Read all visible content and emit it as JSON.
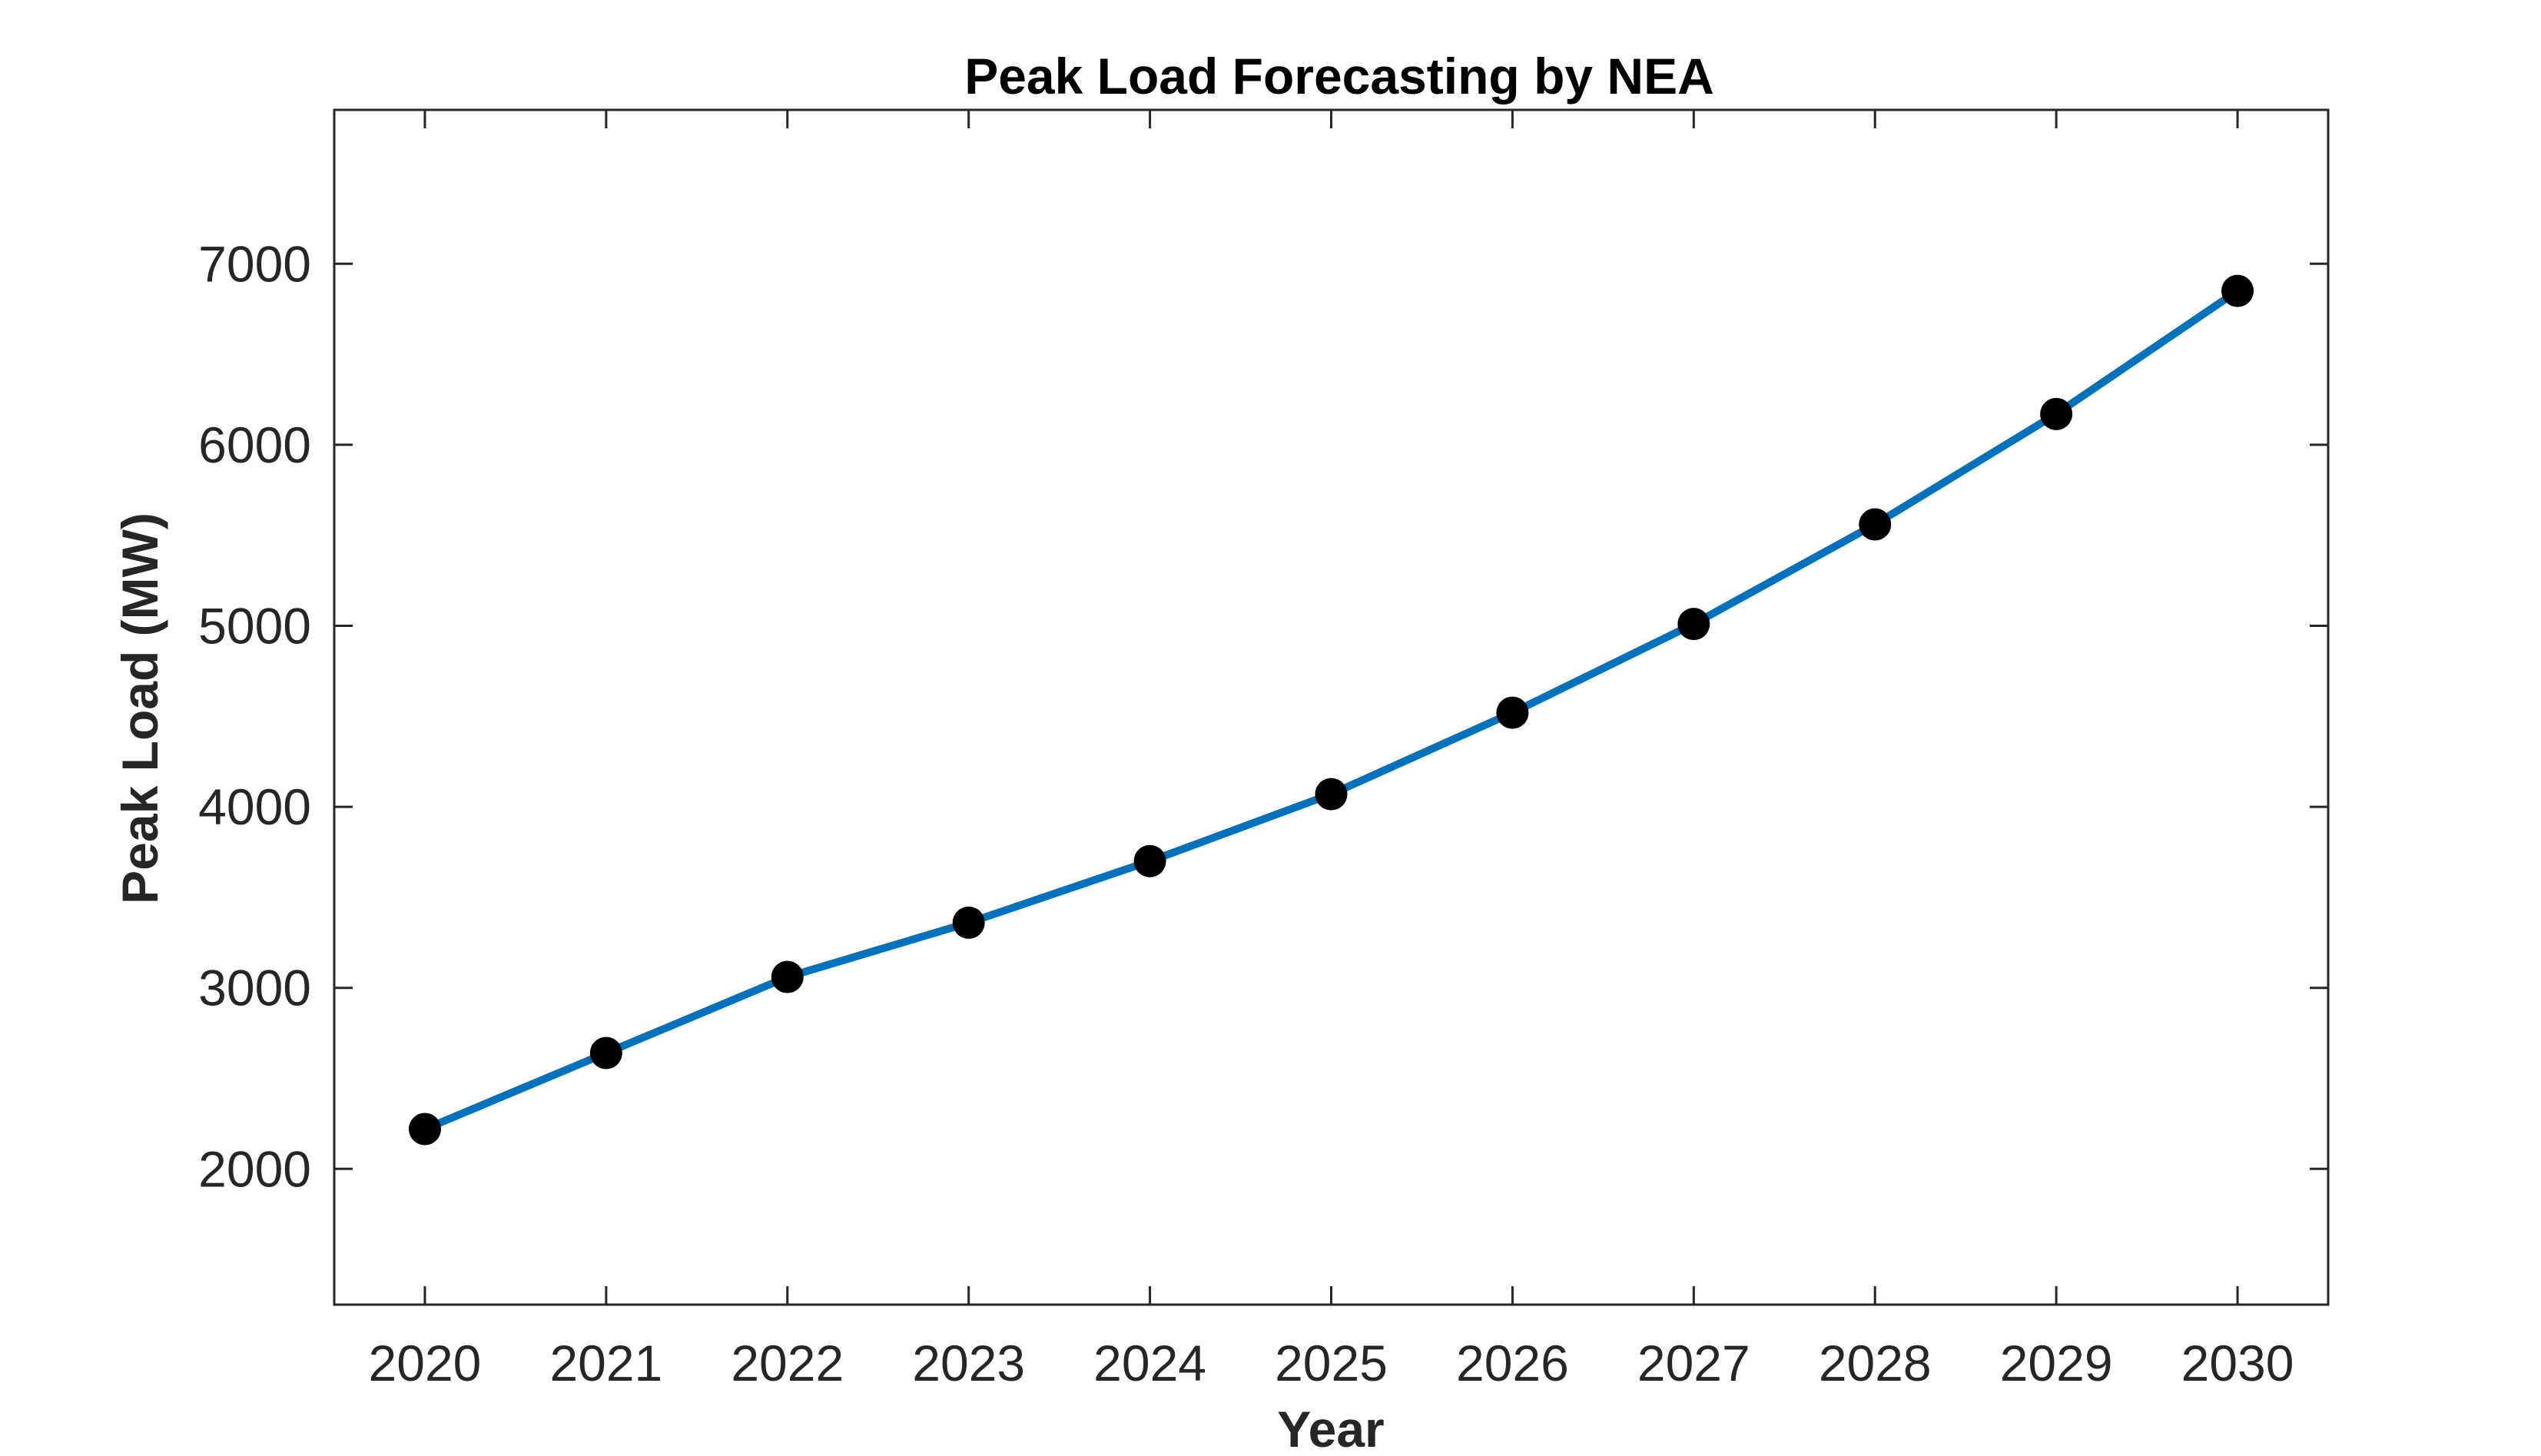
{
  "chart_data": {
    "type": "line",
    "title": "Peak Load Forecasting by NEA",
    "xlabel": "Year",
    "ylabel": "Peak Load (MW)",
    "x": [
      2020,
      2021,
      2022,
      2023,
      2024,
      2025,
      2026,
      2027,
      2028,
      2029,
      2030
    ],
    "series": [
      {
        "values": [
          2220,
          2640,
          3060,
          3360,
          3700,
          4070,
          4520,
          5010,
          5560,
          6170,
          6850
        ],
        "color": "#0072BD",
        "marker": "filled-circle",
        "marker_color": "#000000"
      }
    ],
    "xlim": [
      2019.5,
      2030.5
    ],
    "ylim": [
      1250,
      7850
    ],
    "xticks": [
      "2020",
      "2021",
      "2022",
      "2023",
      "2024",
      "2025",
      "2026",
      "2027",
      "2028",
      "2029",
      "2030"
    ],
    "yticks": [
      "2000",
      "3000",
      "4000",
      "5000",
      "6000",
      "7000"
    ],
    "ytick_values": [
      2000,
      3000,
      4000,
      5000,
      6000,
      7000
    ],
    "grid": false,
    "box": true,
    "legend": "none"
  }
}
